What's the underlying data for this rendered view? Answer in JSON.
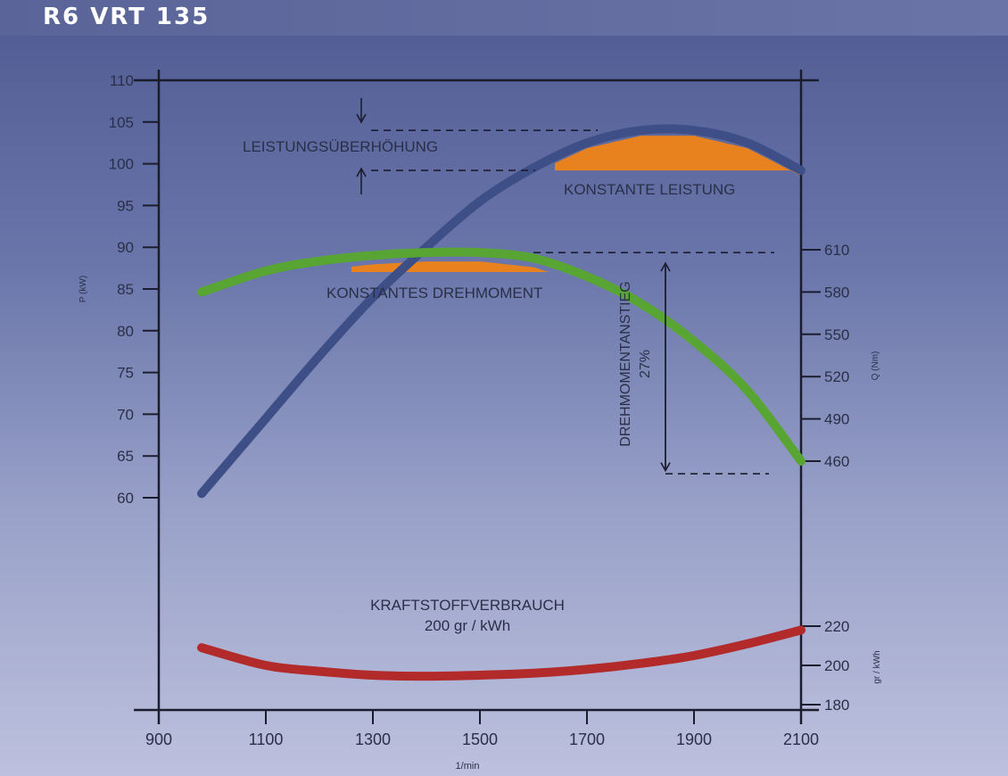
{
  "page": {
    "title": "R6 VRT 135"
  },
  "chart_data": {
    "type": "line",
    "x_label": "1/min",
    "x_ticks": [
      900,
      1100,
      1300,
      1500,
      1700,
      1900,
      2100
    ],
    "x_range": [
      900,
      2100
    ],
    "left_axis": {
      "label": "P (kW)",
      "range": [
        60,
        110
      ],
      "ticks": [
        60,
        65,
        70,
        75,
        80,
        85,
        90,
        95,
        100,
        105,
        110
      ]
    },
    "right_axis_torque": {
      "label": "Q (Nm)",
      "ticks": [
        460,
        490,
        520,
        550,
        580,
        610
      ]
    },
    "right_axis_fuel": {
      "label": "gr / kWh",
      "ticks": [
        180,
        200,
        220
      ]
    },
    "series": [
      {
        "name": "P (kW)",
        "axis": "left",
        "color": "#3d4f86",
        "x": [
          980,
          1100,
          1200,
          1300,
          1400,
          1500,
          1600,
          1700,
          1800,
          1900,
          2000,
          2100
        ],
        "y": [
          60.5,
          69.5,
          77,
          84,
          90,
          95.5,
          99.5,
          102.5,
          104,
          104,
          102.5,
          99.2
        ]
      },
      {
        "name": "Q (Nm)",
        "axis": "right_torque",
        "color": "#58a534",
        "x": [
          980,
          1100,
          1200,
          1300,
          1400,
          1500,
          1600,
          1700,
          1800,
          1900,
          2000,
          2100
        ],
        "y": [
          580,
          595,
          602,
          606,
          608,
          608,
          604,
          591,
          572,
          545,
          510,
          460
        ]
      },
      {
        "name": "gr / kWh",
        "axis": "right_fuel",
        "color": "#b22a2a",
        "x": [
          980,
          1100,
          1200,
          1300,
          1400,
          1500,
          1600,
          1700,
          1800,
          1900,
          2000,
          2100
        ],
        "y": [
          209,
          200,
          197,
          195,
          194.5,
          195,
          196,
          198,
          201,
          205,
          211,
          218
        ]
      }
    ],
    "annotations": {
      "leistungsueberhoehung": "LEISTUNGSÜBERHÖHUNG",
      "konstante_leistung": "KONSTANTE LEISTUNG",
      "konstantes_drehmoment": "KONSTANTES DREHMOMENT",
      "drehmomentanstieg": "DREHMOMENTANSTIEG",
      "drehmomentanstieg_pct": "27%",
      "kraftstoff_title": "KRAFTSTOFFVERBRAUCH",
      "kraftstoff_value": "200 gr / kWh"
    },
    "colors": {
      "fill_orange": "#e8821e",
      "axis": "#1b1d2e"
    }
  }
}
